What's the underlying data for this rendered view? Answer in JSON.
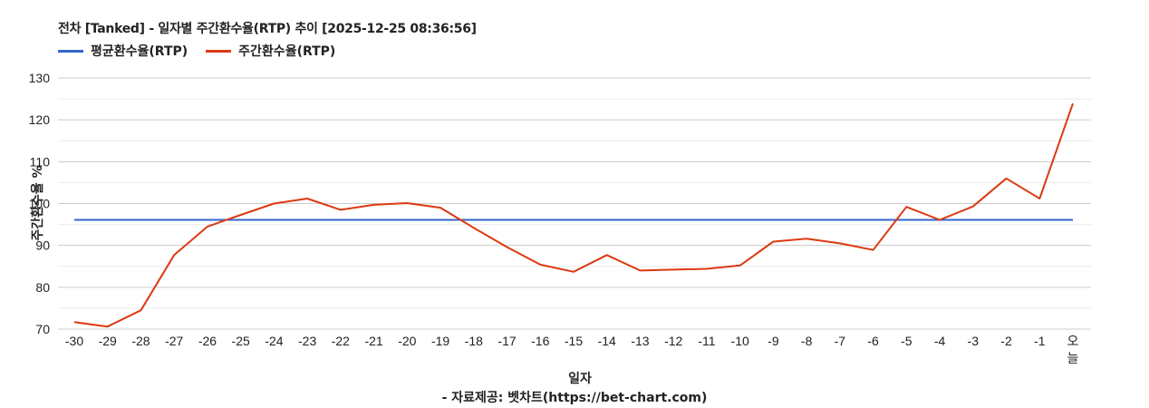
{
  "header": {
    "title": "전차 [Tanked] - 일자별 주간환수율(RTP) 추이 [2025-12-25 08:36:56]"
  },
  "legend": [
    {
      "label": "평균환수율(RTP)",
      "color": "#3366cc"
    },
    {
      "label": "주간환수율(RTP)",
      "color": "#dc3912"
    }
  ],
  "axes": {
    "xlabel": "일자",
    "ylabel": "주간환수율 %"
  },
  "footer": {
    "credit": "- 자료제공: 벳차트(https://bet-chart.com)"
  },
  "chart_data": {
    "type": "line",
    "title": "전차 [Tanked] - 일자별 주간환수율(RTP) 추이 [2025-12-25 08:36:56]",
    "xlabel": "일자",
    "ylabel": "주간환수율 %",
    "ylim": [
      70,
      130
    ],
    "yticks": [
      70,
      80,
      90,
      100,
      110,
      120,
      130
    ],
    "grid": true,
    "legend_position": "top-left",
    "categories": [
      "-30",
      "-29",
      "-28",
      "-27",
      "-26",
      "-25",
      "-24",
      "-23",
      "-22",
      "-21",
      "-20",
      "-19",
      "-18",
      "-17",
      "-16",
      "-15",
      "-14",
      "-13",
      "-12",
      "-11",
      "-10",
      "-9",
      "-8",
      "-7",
      "-6",
      "-5",
      "-4",
      "-3",
      "-2",
      "-1",
      "오늘"
    ],
    "series": [
      {
        "name": "평균환수율(RTP)",
        "color": "#3366cc",
        "values": [
          96.1,
          96.1,
          96.1,
          96.1,
          96.1,
          96.1,
          96.1,
          96.1,
          96.1,
          96.1,
          96.1,
          96.1,
          96.1,
          96.1,
          96.1,
          96.1,
          96.1,
          96.1,
          96.1,
          96.1,
          96.1,
          96.1,
          96.1,
          96.1,
          96.1,
          96.1,
          96.1,
          96.1,
          96.1,
          96.1,
          96.1
        ]
      },
      {
        "name": "주간환수율(RTP)",
        "color": "#dc3912",
        "values": [
          71.7,
          70.6,
          74.5,
          87.7,
          94.5,
          97.3,
          100.0,
          101.2,
          98.5,
          99.7,
          100.1,
          99.0,
          94.2,
          89.6,
          85.4,
          83.7,
          87.7,
          84.0,
          84.2,
          84.4,
          85.2,
          90.9,
          91.6,
          90.5,
          88.9,
          99.2,
          96.1,
          99.3,
          106.0,
          101.2,
          123.9
        ]
      }
    ]
  }
}
